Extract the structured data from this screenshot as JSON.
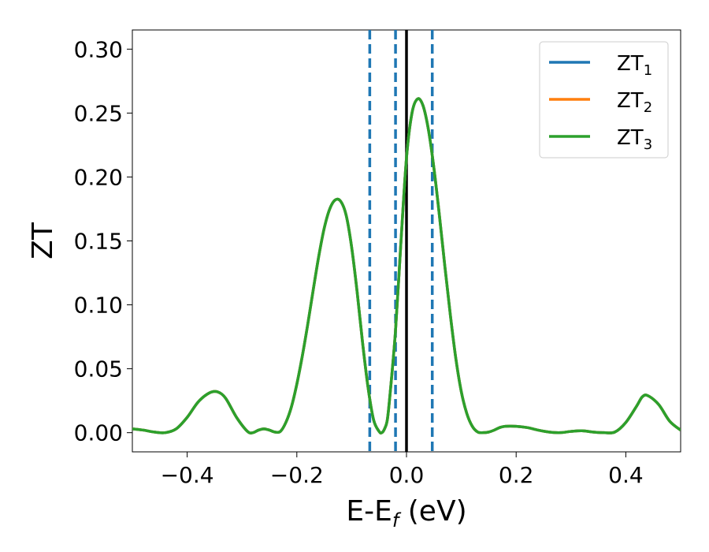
{
  "chart_data": {
    "type": "line",
    "title": "",
    "xlabel": "E-E",
    "xlabel_sub": "f",
    "xlabel_unit": " (eV)",
    "ylabel": "ZT",
    "xlim": [
      -0.5,
      0.5
    ],
    "ylim": [
      -0.015,
      0.315
    ],
    "xticks": [
      -0.4,
      -0.2,
      0.0,
      0.2,
      0.4
    ],
    "xtick_labels": [
      "−0.4",
      "−0.2",
      "0.0",
      "0.2",
      "0.4"
    ],
    "yticks": [
      0.0,
      0.05,
      0.1,
      0.15,
      0.2,
      0.25,
      0.3
    ],
    "ytick_labels": [
      "0.00",
      "0.05",
      "0.10",
      "0.15",
      "0.20",
      "0.25",
      "0.30"
    ],
    "grid": false,
    "legend_position": "top-right",
    "series": [
      {
        "name": "ZT",
        "sub": "1",
        "color": "#1f77b4"
      },
      {
        "name": "ZT",
        "sub": "2",
        "color": "#ff7f0e"
      },
      {
        "name": "ZT",
        "sub": "3",
        "color": "#2ca02c"
      }
    ],
    "curve": {
      "x": [
        -0.5,
        -0.48,
        -0.46,
        -0.44,
        -0.42,
        -0.4,
        -0.38,
        -0.36,
        -0.345,
        -0.33,
        -0.31,
        -0.29,
        -0.28,
        -0.27,
        -0.26,
        -0.25,
        -0.24,
        -0.23,
        -0.22,
        -0.21,
        -0.2,
        -0.19,
        -0.18,
        -0.17,
        -0.16,
        -0.15,
        -0.14,
        -0.13,
        -0.12,
        -0.11,
        -0.1,
        -0.09,
        -0.08,
        -0.07,
        -0.06,
        -0.05,
        -0.045,
        -0.04,
        -0.035,
        -0.03,
        -0.02,
        -0.01,
        0.0,
        0.01,
        0.02,
        0.03,
        0.04,
        0.05,
        0.06,
        0.07,
        0.08,
        0.09,
        0.1,
        0.11,
        0.12,
        0.13,
        0.14,
        0.15,
        0.16,
        0.17,
        0.18,
        0.2,
        0.22,
        0.24,
        0.26,
        0.28,
        0.3,
        0.32,
        0.34,
        0.36,
        0.38,
        0.4,
        0.42,
        0.43,
        0.44,
        0.46,
        0.48,
        0.5
      ],
      "y": [
        0.003,
        0.002,
        0.0005,
        0.0,
        0.003,
        0.012,
        0.024,
        0.031,
        0.032,
        0.027,
        0.012,
        0.001,
        0.0,
        0.002,
        0.003,
        0.002,
        0.0005,
        0.001,
        0.008,
        0.02,
        0.038,
        0.06,
        0.085,
        0.112,
        0.138,
        0.16,
        0.175,
        0.182,
        0.181,
        0.17,
        0.145,
        0.11,
        0.07,
        0.035,
        0.01,
        0.001,
        0.0,
        0.003,
        0.01,
        0.03,
        0.08,
        0.15,
        0.215,
        0.25,
        0.261,
        0.256,
        0.237,
        0.207,
        0.17,
        0.13,
        0.092,
        0.058,
        0.032,
        0.015,
        0.005,
        0.0005,
        0.0,
        0.0005,
        0.002,
        0.004,
        0.005,
        0.005,
        0.004,
        0.002,
        0.0005,
        0.0,
        0.001,
        0.0015,
        0.0005,
        0.0,
        0.0005,
        0.008,
        0.021,
        0.028,
        0.029,
        0.022,
        0.009,
        0.002
      ]
    },
    "vlines": [
      {
        "x": -0.067,
        "style": "dashed",
        "color": "#1f77b4"
      },
      {
        "x": -0.02,
        "style": "dashed",
        "color": "#1f77b4"
      },
      {
        "x": 0.0,
        "style": "solid",
        "color": "#000000"
      },
      {
        "x": 0.047,
        "style": "dashed",
        "color": "#1f77b4"
      }
    ]
  }
}
